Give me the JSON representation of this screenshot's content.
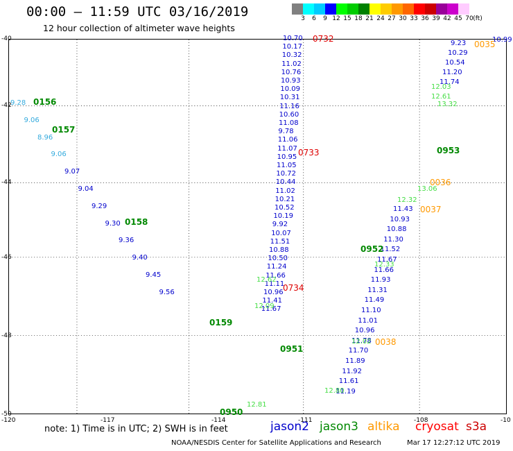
{
  "header": {
    "title": "00:00 — 11:59 UTC 03/16/2019",
    "subtitle": "12 hour collection of altimeter wave heights"
  },
  "scale": {
    "values": [
      "3",
      "6",
      "9",
      "12",
      "15",
      "18",
      "21",
      "24",
      "27",
      "30",
      "33",
      "36",
      "39",
      "42",
      "45",
      "70",
      "(ft)"
    ],
    "colors": [
      "#808080",
      "#00ffff",
      "#00ccff",
      "#0000ff",
      "#00ff00",
      "#00cc00",
      "#008000",
      "#ffff00",
      "#ffcc00",
      "#ff9900",
      "#ff6600",
      "#ff0000",
      "#cc0000",
      "#990099",
      "#cc00cc",
      "#ffccff"
    ]
  },
  "axes": {
    "lat_labels": [
      "-40",
      "-42",
      "-44",
      "-46",
      "-48",
      "-50"
    ],
    "lon_labels": [
      "-120",
      "-117",
      "-114",
      "-111",
      "-108",
      "-10"
    ]
  },
  "tracks": {
    "jason2_center": [
      "10.70",
      "10.17",
      "10.32",
      "11.02",
      "10.76",
      "10.93",
      "10.09",
      "10.31",
      "11.16",
      "10.60",
      "11.08",
      "9.78",
      "11.06",
      "11.07",
      "10.95",
      "11.05",
      "10.72",
      "10.44",
      "11.02",
      "10.21",
      "10.52",
      "10.19",
      "9.92",
      "10.07",
      "11.51",
      "10.88",
      "10.50",
      "11.24",
      "11.66",
      "11.11",
      "10.96",
      "11.41",
      "11.67"
    ],
    "jason2_right": [
      "9.23",
      "10.29",
      "10.54",
      "11.20",
      "11.74"
    ],
    "jason2_lower": [
      "11.43",
      "10.93",
      "10.88",
      "11.30",
      "11.52",
      "11.67",
      "11.66",
      "11.93",
      "11.31",
      "11.49",
      "11.10",
      "11.01",
      "10.96",
      "11.78",
      "11.70",
      "11.89",
      "11.92",
      "11.61",
      "11.19"
    ],
    "jason2_left": [
      "9.28",
      "9.06",
      "8.96",
      "9.06",
      "9.07",
      "9.04",
      "9.29",
      "9.30",
      "9.36",
      "9.40",
      "9.45",
      "9.56"
    ],
    "green_labels": [
      "12.62",
      "12.09",
      "12.33",
      "12.32",
      "12.03",
      "12.61",
      "13.32",
      "12.02",
      "12.80",
      "12.81",
      "13.06"
    ],
    "times_red": [
      "0732",
      "0733",
      "0734"
    ],
    "times_green": [
      "0156",
      "0157",
      "0158",
      "0159",
      "0952",
      "0953",
      "0951",
      "0950"
    ],
    "times_orange": [
      "0036",
      "0037",
      "0038",
      "0035",
      "0036"
    ],
    "right_edge_value": "10.99"
  },
  "footer": {
    "note": "note:  1) Time is in UTC;  2) SWH is in feet",
    "legend": [
      "jason2",
      "jason3",
      "altika",
      "cryosat",
      "s3a"
    ],
    "legend_colors": [
      "#0000cc",
      "#008800",
      "#ff9900",
      "#ff0000",
      "#cc0000"
    ],
    "credit": "NOAA/NESDIS Center for Satellite Applications and Research",
    "timestamp": "Mar 17 12:27:12 UTC 2019"
  }
}
